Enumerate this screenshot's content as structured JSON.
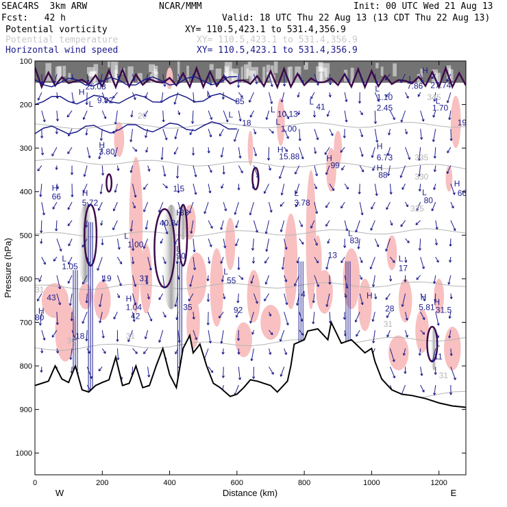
{
  "header": {
    "model": "SEAC4RS  3km ARW",
    "org": "NCAR/MMM",
    "init": "Init: 00 UTC Wed 21 Aug 13",
    "fcst": "Fcst:   42 h",
    "valid": "Valid: 18 UTC Thu 22 Aug 13 (13 CDT Thu 22 Aug 13)",
    "fields": [
      {
        "name": "Potential vorticity",
        "xy": "XY= 110.5,423.1 to 531.4,356.9",
        "color": "#000000"
      },
      {
        "name": "Potential temperature",
        "xy": "XY= 110.5,423.1 to 531.4,356.9",
        "color": "#c8c8c8"
      },
      {
        "name": "Horizontal wind speed",
        "xy": "XY= 110.5,423.1 to 531.4,356.9",
        "color": "#1a1a8c"
      }
    ]
  },
  "colors": {
    "wind": "#1a1a8c",
    "pv": "#3d0a4a",
    "theta": "#b4b4b4",
    "shade_pink": "#f8c0c0",
    "terrain": "#000000"
  },
  "chart_data": {
    "type": "cross-section",
    "xlabel": "Distance (km)",
    "ylabel": "Pressure (hPa)",
    "xlim": [
      0,
      1280
    ],
    "ylim": [
      1050,
      100
    ],
    "x_ticks": [
      0,
      200,
      400,
      600,
      800,
      1000,
      1200
    ],
    "y_ticks": [
      100,
      200,
      300,
      400,
      500,
      600,
      700,
      800,
      900,
      1000
    ],
    "end_labels": {
      "left": "W",
      "right": "E"
    },
    "terrain": [
      [
        0,
        845
      ],
      [
        20,
        840
      ],
      [
        40,
        835
      ],
      [
        60,
        800
      ],
      [
        80,
        830
      ],
      [
        100,
        838
      ],
      [
        120,
        800
      ],
      [
        140,
        855
      ],
      [
        160,
        860
      ],
      [
        180,
        845
      ],
      [
        200,
        838
      ],
      [
        220,
        832
      ],
      [
        240,
        780
      ],
      [
        260,
        845
      ],
      [
        280,
        840
      ],
      [
        300,
        800
      ],
      [
        320,
        850
      ],
      [
        340,
        845
      ],
      [
        360,
        800
      ],
      [
        380,
        760
      ],
      [
        400,
        820
      ],
      [
        420,
        850
      ],
      [
        440,
        760
      ],
      [
        460,
        730
      ],
      [
        470,
        770
      ],
      [
        490,
        750
      ],
      [
        510,
        800
      ],
      [
        530,
        840
      ],
      [
        550,
        850
      ],
      [
        580,
        870
      ],
      [
        600,
        865
      ],
      [
        620,
        850
      ],
      [
        640,
        832
      ],
      [
        660,
        835
      ],
      [
        700,
        845
      ],
      [
        720,
        860
      ],
      [
        750,
        835
      ],
      [
        760,
        800
      ],
      [
        770,
        750
      ],
      [
        800,
        740
      ],
      [
        810,
        720
      ],
      [
        840,
        715
      ],
      [
        870,
        740
      ],
      [
        880,
        700
      ],
      [
        910,
        748
      ],
      [
        940,
        740
      ],
      [
        960,
        755
      ],
      [
        980,
        770
      ],
      [
        1000,
        760
      ],
      [
        1010,
        790
      ],
      [
        1030,
        830
      ],
      [
        1060,
        855
      ],
      [
        1090,
        865
      ],
      [
        1120,
        868
      ],
      [
        1160,
        875
      ],
      [
        1200,
        885
      ],
      [
        1240,
        892
      ],
      [
        1280,
        895
      ]
    ],
    "labels": [
      {
        "t": "H",
        "x": 130,
        "y": 178,
        "c": "wind"
      },
      {
        "t": "25.03",
        "x": 150,
        "y": 165,
        "c": "wind"
      },
      {
        "t": "L",
        "x": 160,
        "y": 205,
        "c": "wind"
      },
      {
        "t": "9.92",
        "x": 185,
        "y": 197,
        "c": "wind"
      },
      {
        "t": "20",
        "x": 305,
        "y": 232,
        "c": "theta"
      },
      {
        "t": "L",
        "x": 510,
        "y": 182,
        "c": "wind"
      },
      {
        "t": "85",
        "x": 595,
        "y": 199,
        "c": "wind"
      },
      {
        "t": "L",
        "x": 575,
        "y": 230,
        "c": "wind"
      },
      {
        "t": "18",
        "x": 615,
        "y": 249,
        "c": "wind"
      },
      {
        "t": "L",
        "x": 700,
        "y": 218,
        "c": "wind"
      },
      {
        "t": "10.13",
        "x": 720,
        "y": 228,
        "c": "wind"
      },
      {
        "t": "L",
        "x": 715,
        "y": 246,
        "c": "wind"
      },
      {
        "t": "1.00",
        "x": 730,
        "y": 262,
        "c": "wind"
      },
      {
        "t": "L",
        "x": 815,
        "y": 200,
        "c": "wind"
      },
      {
        "t": "41",
        "x": 835,
        "y": 212,
        "c": "wind"
      },
      {
        "t": "L",
        "x": 1010,
        "y": 170,
        "c": "wind"
      },
      {
        "t": "1.10",
        "x": 1015,
        "y": 190,
        "c": "wind"
      },
      {
        "t": "2.45",
        "x": 1015,
        "y": 214,
        "c": "wind"
      },
      {
        "t": "L",
        "x": 1110,
        "y": 148,
        "c": "wind"
      },
      {
        "t": "7.86",
        "x": 1105,
        "y": 164,
        "c": "wind"
      },
      {
        "t": "H",
        "x": 1150,
        "y": 128,
        "c": "wind"
      },
      {
        "t": "27.74",
        "x": 1175,
        "y": 162,
        "c": "wind"
      },
      {
        "t": "345",
        "x": 1165,
        "y": 190,
        "c": "theta"
      },
      {
        "t": "L",
        "x": 1190,
        "y": 198,
        "c": "wind"
      },
      {
        "t": "1.70",
        "x": 1180,
        "y": 214,
        "c": "wind"
      },
      {
        "t": "19",
        "x": 1255,
        "y": 248,
        "c": "wind"
      },
      {
        "t": "H",
        "x": 190,
        "y": 300,
        "c": "wind"
      },
      {
        "t": "3.80",
        "x": 190,
        "y": 315,
        "c": "wind"
      },
      {
        "t": "H",
        "x": 720,
        "y": 310,
        "c": "wind"
      },
      {
        "t": "15.88",
        "x": 725,
        "y": 326,
        "c": "wind"
      },
      {
        "t": "H",
        "x": 865,
        "y": 330,
        "c": "wind"
      },
      {
        "t": "99",
        "x": 878,
        "y": 346,
        "c": "wind"
      },
      {
        "t": "H",
        "x": 1015,
        "y": 302,
        "c": "wind"
      },
      {
        "t": "6.73",
        "x": 1015,
        "y": 328,
        "c": "wind"
      },
      {
        "t": "335",
        "x": 1128,
        "y": 328,
        "c": "theta"
      },
      {
        "t": "H",
        "x": 1015,
        "y": 352,
        "c": "wind"
      },
      {
        "t": "88",
        "x": 1020,
        "y": 368,
        "c": "wind"
      },
      {
        "t": "330",
        "x": 1128,
        "y": 372,
        "c": "theta"
      },
      {
        "t": "H",
        "x": 1245,
        "y": 388,
        "c": "wind"
      },
      {
        "t": "66",
        "x": 1255,
        "y": 410,
        "c": "wind"
      },
      {
        "t": "L",
        "x": 1150,
        "y": 408,
        "c": "wind"
      },
      {
        "t": "80",
        "x": 1155,
        "y": 426,
        "c": "wind"
      },
      {
        "t": "325",
        "x": 1115,
        "y": 445,
        "c": "theta"
      },
      {
        "t": "H",
        "x": 50,
        "y": 398,
        "c": "wind"
      },
      {
        "t": "66",
        "x": 50,
        "y": 418,
        "c": "wind"
      },
      {
        "t": "H",
        "x": 140,
        "y": 410,
        "c": "wind"
      },
      {
        "t": "5.72",
        "x": 140,
        "y": 432,
        "c": "wind"
      },
      {
        "t": "1.5",
        "x": 410,
        "y": 400,
        "c": "wind"
      },
      {
        "t": "H",
        "x": 420,
        "y": 455,
        "c": "wind"
      },
      {
        "t": "33",
        "x": 430,
        "y": 455,
        "c": "wind"
      },
      {
        "t": "40.8",
        "x": 370,
        "y": 478,
        "c": "wind"
      },
      {
        "t": "L",
        "x": 770,
        "y": 410,
        "c": "wind"
      },
      {
        "t": "3.78",
        "x": 770,
        "y": 432,
        "c": "wind"
      },
      {
        "t": "L",
        "x": 265,
        "y": 508,
        "c": "wind"
      },
      {
        "t": "1.00",
        "x": 275,
        "y": 528,
        "c": "wind"
      },
      {
        "t": "L",
        "x": 420,
        "y": 538,
        "c": "wind"
      },
      {
        "t": "90",
        "x": 420,
        "y": 554,
        "c": "wind"
      },
      {
        "t": "L",
        "x": 930,
        "y": 502,
        "c": "wind"
      },
      {
        "t": "83",
        "x": 935,
        "y": 518,
        "c": "wind"
      },
      {
        "t": "13",
        "x": 870,
        "y": 552,
        "c": "wind"
      },
      {
        "t": "L",
        "x": 1080,
        "y": 560,
        "c": "wind"
      },
      {
        "t": "17",
        "x": 1080,
        "y": 582,
        "c": "wind"
      },
      {
        "t": "L",
        "x": 80,
        "y": 560,
        "c": "wind"
      },
      {
        "t": "1.05",
        "x": 80,
        "y": 578,
        "c": "wind"
      },
      {
        "t": "19",
        "x": 200,
        "y": 606,
        "c": "wind"
      },
      {
        "t": "31",
        "x": 310,
        "y": 606,
        "c": "wind"
      },
      {
        "t": "L",
        "x": 560,
        "y": 590,
        "c": "wind"
      },
      {
        "t": "55",
        "x": 570,
        "y": 610,
        "c": "wind"
      },
      {
        "t": "31",
        "x": 0,
        "y": 632,
        "c": "theta"
      },
      {
        "t": "H",
        "x": 10,
        "y": 680,
        "c": "wind"
      },
      {
        "t": "43",
        "x": 35,
        "y": 650,
        "c": "wind"
      },
      {
        "t": "80",
        "x": 0,
        "y": 695,
        "c": "wind"
      },
      {
        "t": "H",
        "x": 270,
        "y": 652,
        "c": "wind"
      },
      {
        "t": "1.04",
        "x": 270,
        "y": 672,
        "c": "wind"
      },
      {
        "t": "42",
        "x": 285,
        "y": 692,
        "c": "wind"
      },
      {
        "t": "35",
        "x": 440,
        "y": 672,
        "c": "wind"
      },
      {
        "t": "92",
        "x": 590,
        "y": 678,
        "c": "wind"
      },
      {
        "t": "4",
        "x": 790,
        "y": 642,
        "c": "wind"
      },
      {
        "t": "H",
        "x": 985,
        "y": 645,
        "c": "wind"
      },
      {
        "t": "28",
        "x": 1040,
        "y": 675,
        "c": "wind"
      },
      {
        "t": "H",
        "x": 1145,
        "y": 648,
        "c": "wind"
      },
      {
        "t": "5.81",
        "x": 1140,
        "y": 672,
        "c": "wind"
      },
      {
        "t": "H",
        "x": 1185,
        "y": 660,
        "c": "wind"
      },
      {
        "t": "31.5",
        "x": 1190,
        "y": 678,
        "c": "wind"
      },
      {
        "t": "18",
        "x": 120,
        "y": 738,
        "c": "wind"
      },
      {
        "t": "30",
        "x": 95,
        "y": 748,
        "c": "theta"
      },
      {
        "t": "31",
        "x": 270,
        "y": 738,
        "c": "theta"
      },
      {
        "t": "31",
        "x": 1035,
        "y": 710,
        "c": "theta"
      },
      {
        "t": "L",
        "x": 1190,
        "y": 755,
        "c": "wind"
      },
      {
        "t": "11",
        "x": 1185,
        "y": 785,
        "c": "wind"
      },
      {
        "t": "31",
        "x": 1200,
        "y": 828,
        "c": "theta"
      }
    ]
  }
}
